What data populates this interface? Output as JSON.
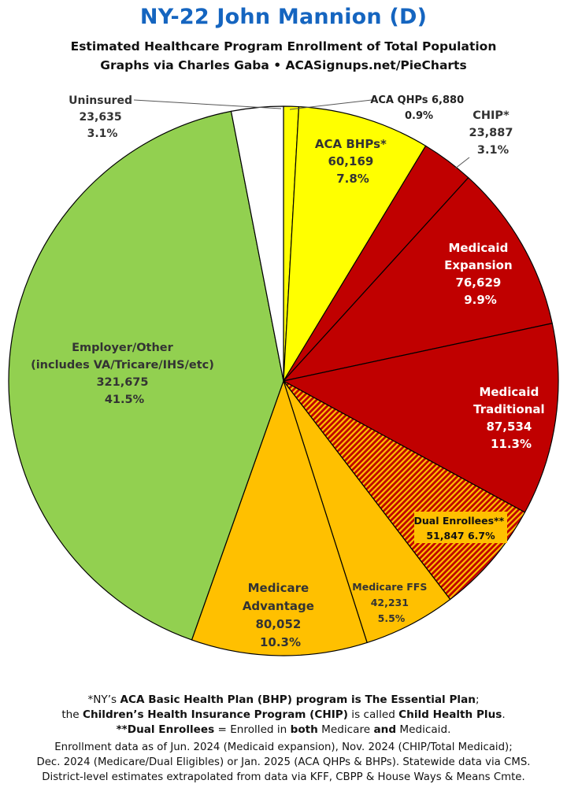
{
  "title": "NY-22 John Mannion (D)",
  "subtitle_line1": "Estimated Healthcare Program Enrollment of Total Population",
  "subtitle_line2": "Graphs via Charles Gaba   •   ACASignups.net/PieCharts",
  "chart_data": {
    "type": "pie",
    "start": "12 o'clock",
    "direction": "clockwise",
    "slices": [
      {
        "label": "ACA QHPs",
        "value": 6880,
        "percent": "0.9%",
        "color": "#ffff00",
        "pattern": "none"
      },
      {
        "label": "ACA BHPs*",
        "value": 60169,
        "percent": "7.8%",
        "color": "#ffff00",
        "pattern": "none"
      },
      {
        "label": "CHIP*",
        "value": 23887,
        "percent": "3.1%",
        "color": "#c00000",
        "pattern": "none"
      },
      {
        "label": "Medicaid Expansion",
        "value": 76629,
        "percent": "9.9%",
        "color": "#c00000",
        "pattern": "none"
      },
      {
        "label": "Medicaid Traditional",
        "value": 87534,
        "percent": "11.3%",
        "color": "#c00000",
        "pattern": "none"
      },
      {
        "label": "Dual Enrollees**",
        "value": 51847,
        "percent": "6.7%",
        "color": "#c00000",
        "pattern": "hatched-orange"
      },
      {
        "label": "Medicare FFS",
        "value": 42231,
        "percent": "5.5%",
        "color": "#ffc000",
        "pattern": "none"
      },
      {
        "label": "Medicare Advantage",
        "value": 80052,
        "percent": "10.3%",
        "color": "#ffc000",
        "pattern": "none"
      },
      {
        "label": "Employer/Other (includes VA/Tricare/IHS/etc)",
        "value": 321675,
        "percent": "41.5%",
        "color": "#92d050",
        "pattern": "none"
      },
      {
        "label": "Uninsured",
        "value": 23635,
        "percent": "3.1%",
        "color": "#ffffff",
        "pattern": "none"
      }
    ],
    "labels": {
      "aca_qhps": {
        "line1": "ACA QHPs 6,880",
        "line2": "0.9%"
      },
      "aca_bhps": {
        "line1": "ACA BHPs*",
        "line2": "60,169",
        "line3": "7.8%"
      },
      "chip": {
        "line1": "CHIP*",
        "line2": "23,887",
        "line3": "3.1%"
      },
      "medicaid_expansion": {
        "line1": "Medicaid",
        "line2": "Expansion",
        "line3": "76,629",
        "line4": "9.9%"
      },
      "medicaid_traditional": {
        "line1": "Medicaid",
        "line2": "Traditional",
        "line3": "87,534",
        "line4": "11.3%"
      },
      "dual_enrollees": {
        "line1": "Dual Enrollees**",
        "line2": "51,847 6.7%"
      },
      "medicare_ffs": {
        "line1": "Medicare FFS",
        "line2": "42,231",
        "line3": "5.5%"
      },
      "medicare_advantage": {
        "line1": "Medicare",
        "line2": "Advantage",
        "line3": "80,052",
        "line4": "10.3%"
      },
      "employer_other": {
        "line1": "Employer/Other",
        "line2": "(includes VA/Tricare/IHS/etc)",
        "line3": "321,675",
        "line4": "41.5%"
      },
      "uninsured": {
        "line1": "Uninsured",
        "line2": "23,635",
        "line3": "3.1%"
      }
    }
  },
  "notes": {
    "n1_a": "*NY’s ",
    "n1_b": "ACA Basic Health Plan (BHP) program is The Essential Plan",
    "n1_c": ";",
    "n2_a": "the ",
    "n2_b": "Children’s Health Insurance Program (CHIP)",
    "n2_c": " is called ",
    "n2_d": "Child Health Plus",
    "n2_e": ".",
    "n3_a": "**Dual Enrollees",
    "n3_b": " = Enrolled in ",
    "n3_c": "both",
    "n3_d": " Medicare ",
    "n3_e": "and",
    "n3_f": " Medicaid.",
    "src1": "Enrollment data as of Jun. 2024 (Medicaid expansion), Nov. 2024 (CHIP/Total Medicaid);",
    "src2": "Dec. 2024 (Medicare/Dual Eligibles) or Jan. 2025 (ACA QHPs & BHPs). Statewide data via CMS.",
    "src3": "District-level estimates extrapolated from data via KFF, CBPP & House Ways & Means Cmte."
  }
}
